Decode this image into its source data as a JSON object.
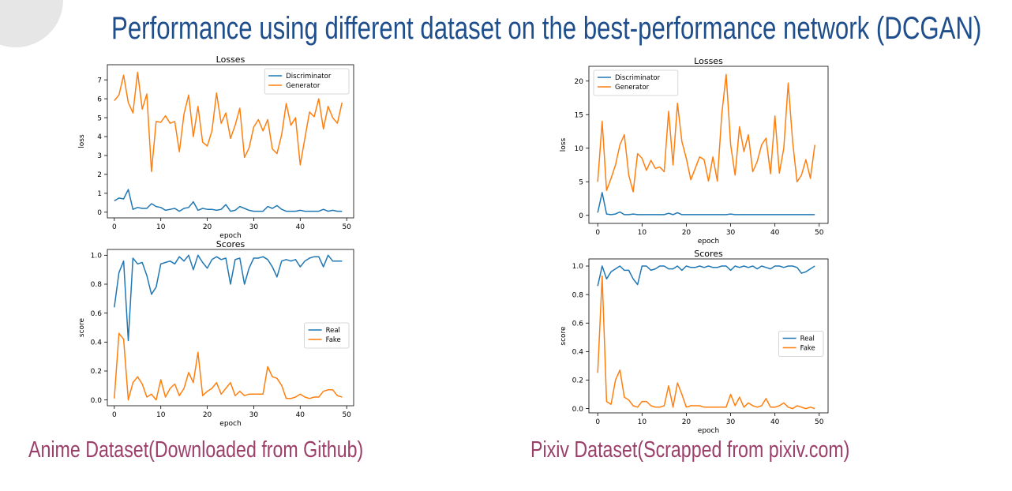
{
  "title": "Performance using different dataset on the best-performance network (DCGAN)",
  "captions": {
    "left": "Anime Dataset(Downloaded from Github)",
    "right": "Pixiv Dataset(Scrapped from pixiv.com)"
  },
  "colors": {
    "title": "#1f4e8c",
    "caption": "#9b3f6a",
    "series_blue": "#1f77b4",
    "series_orange": "#ff7f0e"
  },
  "chart_data": [
    {
      "type": "line",
      "title": "Losses",
      "xlabel": "epoch",
      "ylabel": "loss",
      "xlim": [
        -1.5,
        51.5
      ],
      "ylim": [
        -0.3,
        7.8
      ],
      "xticks": [
        0,
        10,
        20,
        30,
        40,
        50
      ],
      "yticks": [
        0,
        1,
        2,
        3,
        4,
        5,
        6,
        7
      ],
      "legend_position": "upper right",
      "x": [
        0,
        1,
        2,
        3,
        4,
        5,
        6,
        7,
        8,
        9,
        10,
        11,
        12,
        13,
        14,
        15,
        16,
        17,
        18,
        19,
        20,
        21,
        22,
        23,
        24,
        25,
        26,
        27,
        28,
        29,
        30,
        31,
        32,
        33,
        34,
        35,
        36,
        37,
        38,
        39,
        40,
        41,
        42,
        43,
        44,
        45,
        46,
        47,
        48,
        49
      ],
      "series": [
        {
          "name": "Discriminator",
          "color": "#1f77b4",
          "values": [
            0.6,
            0.75,
            0.7,
            1.2,
            0.15,
            0.25,
            0.2,
            0.2,
            0.45,
            0.3,
            0.25,
            0.1,
            0.15,
            0.2,
            0.05,
            0.2,
            0.25,
            0.55,
            0.1,
            0.2,
            0.15,
            0.15,
            0.1,
            0.15,
            0.4,
            0.05,
            0.1,
            0.3,
            0.2,
            0.1,
            0.05,
            0.05,
            0.05,
            0.3,
            0.2,
            0.35,
            0.15,
            0.05,
            0.05,
            0.05,
            0.1,
            0.05,
            0.05,
            0.05,
            0.05,
            0.15,
            0.05,
            0.1,
            0.05,
            0.05
          ]
        },
        {
          "name": "Generator",
          "color": "#ff7f0e",
          "values": [
            5.9,
            6.2,
            7.25,
            5.8,
            5.25,
            7.4,
            5.45,
            6.25,
            2.15,
            4.8,
            4.75,
            5.1,
            4.7,
            4.8,
            3.2,
            5.2,
            6.2,
            4.0,
            5.6,
            3.7,
            3.5,
            4.3,
            6.3,
            4.7,
            5.25,
            3.9,
            4.6,
            5.5,
            2.9,
            3.4,
            4.5,
            4.9,
            4.3,
            4.9,
            3.35,
            3.1,
            4.1,
            5.75,
            4.6,
            5.0,
            2.5,
            3.9,
            5.3,
            5.05,
            6.0,
            4.4,
            5.6,
            5.0,
            4.7,
            5.8
          ]
        }
      ]
    },
    {
      "type": "line",
      "title": "Scores",
      "xlabel": "epoch",
      "ylabel": "score",
      "xlim": [
        -1.5,
        51.5
      ],
      "ylim": [
        -0.04,
        1.04
      ],
      "xticks": [
        0,
        10,
        20,
        30,
        40,
        50
      ],
      "yticks": [
        0.0,
        0.2,
        0.4,
        0.6,
        0.8,
        1.0
      ],
      "legend_position": "center right",
      "x": [
        0,
        1,
        2,
        3,
        4,
        5,
        6,
        7,
        8,
        9,
        10,
        11,
        12,
        13,
        14,
        15,
        16,
        17,
        18,
        19,
        20,
        21,
        22,
        23,
        24,
        25,
        26,
        27,
        28,
        29,
        30,
        31,
        32,
        33,
        34,
        35,
        36,
        37,
        38,
        39,
        40,
        41,
        42,
        43,
        44,
        45,
        46,
        47,
        48,
        49
      ],
      "series": [
        {
          "name": "Real",
          "color": "#1f77b4",
          "values": [
            0.64,
            0.88,
            0.96,
            0.41,
            0.98,
            0.94,
            0.95,
            0.86,
            0.73,
            0.78,
            0.94,
            0.95,
            0.96,
            0.94,
            0.99,
            0.96,
            1.0,
            0.9,
            1.0,
            0.95,
            0.91,
            0.97,
            0.99,
            0.97,
            0.98,
            0.8,
            0.97,
            0.98,
            0.8,
            0.91,
            0.98,
            0.98,
            0.99,
            0.97,
            0.92,
            0.85,
            0.96,
            0.97,
            0.96,
            0.97,
            0.92,
            0.96,
            0.98,
            0.99,
            0.99,
            0.92,
            1.0,
            0.96,
            0.96,
            0.96
          ]
        },
        {
          "name": "Fake",
          "color": "#ff7f0e",
          "values": [
            0.01,
            0.46,
            0.42,
            0.0,
            0.12,
            0.16,
            0.11,
            0.02,
            0.04,
            0.0,
            0.14,
            0.02,
            0.08,
            0.11,
            0.03,
            0.08,
            0.19,
            0.12,
            0.33,
            0.03,
            0.06,
            0.08,
            0.12,
            0.04,
            0.08,
            0.12,
            0.03,
            0.06,
            0.03,
            0.04,
            0.04,
            0.04,
            0.04,
            0.23,
            0.16,
            0.15,
            0.1,
            0.01,
            0.01,
            0.02,
            0.04,
            0.02,
            0.01,
            0.02,
            0.02,
            0.06,
            0.07,
            0.07,
            0.03,
            0.02
          ]
        }
      ]
    },
    {
      "type": "line",
      "title": "Losses",
      "xlabel": "epoch",
      "ylabel": "loss",
      "xlim": [
        -2,
        52
      ],
      "ylim": [
        -1.2,
        22.2
      ],
      "xticks": [
        0,
        10,
        20,
        30,
        40,
        50
      ],
      "yticks": [
        0,
        5,
        10,
        15,
        20
      ],
      "legend_position": "upper left",
      "x": [
        0,
        1,
        2,
        3,
        4,
        5,
        6,
        7,
        8,
        9,
        10,
        11,
        12,
        13,
        14,
        15,
        16,
        17,
        18,
        19,
        20,
        21,
        22,
        23,
        24,
        25,
        26,
        27,
        28,
        29,
        30,
        31,
        32,
        33,
        34,
        35,
        36,
        37,
        38,
        39,
        40,
        41,
        42,
        43,
        44,
        45,
        46,
        47,
        48,
        49
      ],
      "series": [
        {
          "name": "Discriminator",
          "color": "#1f77b4",
          "values": [
            0.4,
            3.4,
            0.2,
            0.1,
            0.2,
            0.5,
            0.1,
            0.1,
            0.2,
            0.1,
            0.1,
            0.1,
            0.1,
            0.1,
            0.1,
            0.1,
            0.3,
            0.1,
            0.4,
            0.1,
            0.1,
            0.1,
            0.1,
            0.1,
            0.1,
            0.1,
            0.1,
            0.1,
            0.1,
            0.1,
            0.2,
            0.1,
            0.1,
            0.1,
            0.1,
            0.1,
            0.1,
            0.1,
            0.1,
            0.1,
            0.1,
            0.1,
            0.1,
            0.1,
            0.1,
            0.1,
            0.1,
            0.1,
            0.1,
            0.1
          ]
        },
        {
          "name": "Generator",
          "color": "#ff7f0e",
          "values": [
            5.0,
            14.0,
            3.7,
            5.5,
            7.5,
            10.5,
            12.0,
            6.0,
            3.5,
            9.2,
            8.5,
            6.7,
            8.2,
            7.0,
            7.2,
            6.5,
            15.5,
            7.5,
            16.7,
            11.0,
            8.5,
            5.3,
            7.0,
            8.7,
            8.3,
            5.1,
            8.7,
            5.1,
            15.0,
            21.0,
            10.5,
            6.0,
            13.2,
            9.5,
            12.0,
            6.5,
            8.0,
            10.5,
            11.5,
            6.2,
            14.8,
            6.3,
            10.0,
            19.7,
            11.0,
            5.0,
            6.0,
            8.3,
            5.5,
            10.5
          ]
        }
      ]
    },
    {
      "type": "line",
      "title": "Scores",
      "xlabel": "epoch",
      "ylabel": "score",
      "xlim": [
        -2,
        52
      ],
      "ylim": [
        -0.03,
        1.05
      ],
      "xticks": [
        0,
        10,
        20,
        30,
        40,
        50
      ],
      "yticks": [
        0.0,
        0.2,
        0.4,
        0.6,
        0.8,
        1.0
      ],
      "legend_position": "center right",
      "x": [
        0,
        1,
        2,
        3,
        4,
        5,
        6,
        7,
        8,
        9,
        10,
        11,
        12,
        13,
        14,
        15,
        16,
        17,
        18,
        19,
        20,
        21,
        22,
        23,
        24,
        25,
        26,
        27,
        28,
        29,
        30,
        31,
        32,
        33,
        34,
        35,
        36,
        37,
        38,
        39,
        40,
        41,
        42,
        43,
        44,
        45,
        46,
        47,
        48,
        49
      ],
      "series": [
        {
          "name": "Real",
          "color": "#1f77b4",
          "values": [
            0.86,
            1.0,
            0.91,
            0.96,
            0.98,
            1.0,
            0.97,
            0.97,
            0.91,
            0.87,
            1.0,
            1.0,
            0.97,
            0.98,
            1.0,
            1.0,
            0.98,
            0.98,
            1.0,
            0.97,
            1.0,
            0.99,
            0.99,
            1.0,
            0.99,
            1.0,
            0.99,
            0.99,
            1.0,
            1.0,
            0.97,
            1.0,
            0.99,
            1.0,
            0.99,
            1.0,
            0.98,
            1.0,
            0.99,
            0.98,
            1.0,
            1.0,
            0.99,
            1.0,
            1.0,
            0.99,
            0.95,
            0.96,
            0.98,
            1.0
          ]
        },
        {
          "name": "Fake",
          "color": "#ff7f0e",
          "values": [
            0.25,
            0.93,
            0.05,
            0.03,
            0.2,
            0.27,
            0.08,
            0.06,
            0.02,
            0.01,
            0.05,
            0.05,
            0.02,
            0.01,
            0.01,
            0.02,
            0.16,
            0.01,
            0.18,
            0.1,
            0.01,
            0.02,
            0.02,
            0.02,
            0.01,
            0.01,
            0.01,
            0.01,
            0.01,
            0.01,
            0.1,
            0.02,
            0.08,
            0.01,
            0.04,
            0.02,
            0.01,
            0.02,
            0.07,
            0.01,
            0.01,
            0.02,
            0.04,
            0.01,
            0.0,
            0.02,
            0.01,
            0.0,
            0.01,
            0.0
          ]
        }
      ]
    }
  ]
}
